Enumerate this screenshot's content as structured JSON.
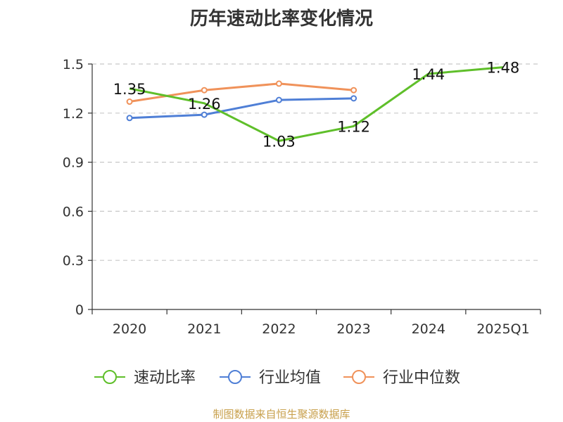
{
  "title": "历年速动比率变化情况",
  "source": "制图数据来自恒生聚源数据库",
  "chart_data": {
    "type": "line",
    "categories": [
      "2020",
      "2021",
      "2022",
      "2023",
      "2024",
      "2025Q1"
    ],
    "ylim": [
      0,
      1.5
    ],
    "yticks": [
      "0",
      "0.3",
      "0.6",
      "0.9",
      "1.2",
      "1.5"
    ],
    "grid": true,
    "legend_position": "bottom",
    "series": [
      {
        "name": "速动比率",
        "color": "#5fbf2a",
        "values": [
          1.35,
          1.26,
          1.03,
          1.12,
          1.44,
          1.48
        ],
        "labels": [
          "1.35",
          "1.26",
          "1.03",
          "1.12",
          "1.44",
          "1.48"
        ],
        "show_labels": true
      },
      {
        "name": "行业均值",
        "color": "#4f7fd6",
        "values": [
          1.17,
          1.19,
          1.28,
          1.29,
          null,
          null
        ],
        "show_labels": false
      },
      {
        "name": "行业中位数",
        "color": "#f0925a",
        "values": [
          1.27,
          1.34,
          1.38,
          1.34,
          null,
          null
        ],
        "show_labels": false
      }
    ]
  }
}
